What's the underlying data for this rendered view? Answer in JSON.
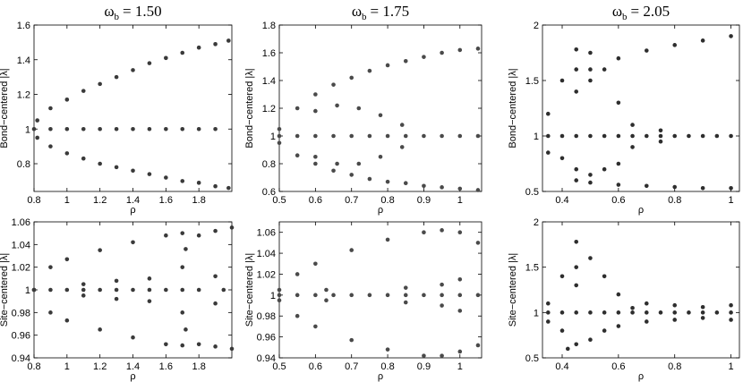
{
  "chart_data": [
    {
      "type": "scatter",
      "title": [
        "ω",
        "b",
        "= 1.50"
      ],
      "xlabel": "ρ",
      "ylabel": "Bond−centered |λ|",
      "xlim": [
        0.8,
        2.0
      ],
      "ylim": [
        0.64,
        1.6
      ],
      "xticks": [
        0.8,
        1,
        1.2,
        1.4,
        1.6,
        1.8
      ],
      "yticks": [
        0.8,
        1,
        1.2,
        1.4,
        1.6
      ],
      "series": [
        {
          "color": "#3a3a3a",
          "x": [
            0.82,
            0.9,
            1,
            1.1,
            1.2,
            1.3,
            1.4,
            1.5,
            1.6,
            1.7,
            1.8,
            1.9,
            1.98,
            0.82,
            0.9,
            1,
            1.1,
            1.2,
            1.3,
            1.4,
            1.5,
            1.6,
            1.7,
            1.8,
            1.9,
            1.98,
            0.8,
            0.9,
            1,
            1.1,
            1.2,
            1.3,
            1.4,
            1.5,
            1.6,
            1.7,
            1.8,
            1.9
          ],
          "y": [
            1.05,
            1.12,
            1.17,
            1.22,
            1.26,
            1.3,
            1.34,
            1.38,
            1.41,
            1.44,
            1.47,
            1.49,
            1.51,
            0.95,
            0.9,
            0.86,
            0.83,
            0.8,
            0.78,
            0.76,
            0.74,
            0.72,
            0.7,
            0.69,
            0.67,
            0.66,
            1,
            1,
            1,
            1,
            1,
            1,
            1,
            1,
            1,
            1,
            1,
            1
          ]
        }
      ]
    },
    {
      "type": "scatter",
      "title": [
        "ω",
        "b",
        "= 1.75"
      ],
      "xlabel": "ρ",
      "ylabel": "Bond−centered |λ|",
      "xlim": [
        0.5,
        1.06
      ],
      "ylim": [
        0.6,
        1.8
      ],
      "xticks": [
        0.5,
        0.6,
        0.7,
        0.8,
        0.9,
        1
      ],
      "yticks": [
        0.6,
        0.8,
        1,
        1.2,
        1.4,
        1.6,
        1.8
      ],
      "series": [
        {
          "color": "#4a4a4a",
          "x": [
            0.5,
            0.55,
            0.6,
            0.65,
            0.7,
            0.75,
            0.8,
            0.85,
            0.9,
            0.95,
            1.0,
            1.05,
            0.5,
            0.55,
            0.6,
            0.65,
            0.7,
            0.75,
            0.8,
            0.85,
            0.9,
            0.95,
            1.0,
            1.05,
            0.6,
            0.66,
            0.72,
            0.78,
            0.84,
            0.6,
            0.66,
            0.72,
            0.78,
            0.84,
            0.5,
            0.55,
            0.6,
            0.65,
            0.7,
            0.75,
            0.8,
            0.85,
            0.9,
            0.95,
            1.0,
            1.05
          ],
          "y": [
            1.05,
            1.2,
            1.3,
            1.37,
            1.42,
            1.47,
            1.51,
            1.54,
            1.57,
            1.6,
            1.62,
            1.63,
            0.95,
            0.86,
            0.8,
            0.75,
            0.72,
            0.69,
            0.67,
            0.66,
            0.64,
            0.63,
            0.62,
            0.61,
            1.18,
            1.22,
            1.2,
            1.15,
            1.08,
            0.85,
            0.8,
            0.8,
            0.85,
            0.92,
            1,
            1,
            1,
            1,
            1,
            1,
            1,
            1,
            1,
            1,
            1,
            1
          ]
        }
      ]
    },
    {
      "type": "scatter",
      "title": [
        "ω",
        "b",
        "= 2.05"
      ],
      "xlabel": "ρ",
      "ylabel": "Bond−centered |λ|",
      "xlim": [
        0.33,
        1.03
      ],
      "ylim": [
        0.5,
        2
      ],
      "xticks": [
        0.4,
        0.6,
        0.8,
        1
      ],
      "yticks": [
        0.5,
        1,
        1.5,
        2
      ],
      "series": [
        {
          "color": "#2e2e2e",
          "x": [
            0.5,
            0.6,
            0.7,
            0.8,
            0.9,
            1.0,
            0.5,
            0.6,
            0.7,
            0.8,
            0.9,
            1.0,
            0.45,
            0.45,
            0.45,
            0.45,
            0.45,
            0.5,
            0.5,
            0.5,
            0.55,
            0.55,
            0.4,
            0.4,
            0.6,
            0.6,
            0.35,
            0.35,
            0.65,
            0.65,
            0.75,
            0.75,
            0.35,
            0.4,
            0.45,
            0.5,
            0.55,
            0.6,
            0.65,
            0.7,
            0.75,
            0.8,
            0.85,
            0.9,
            0.95,
            1.0
          ],
          "y": [
            1.6,
            1.7,
            1.77,
            1.82,
            1.86,
            1.9,
            0.58,
            0.56,
            0.55,
            0.54,
            0.53,
            0.53,
            1.78,
            1.6,
            1.4,
            0.7,
            0.6,
            1.75,
            1.5,
            0.65,
            1.6,
            0.7,
            1.5,
            0.8,
            1.3,
            0.75,
            1.2,
            0.85,
            1.1,
            0.9,
            1.05,
            0.95,
            1,
            1,
            1,
            1,
            1,
            1,
            1,
            1,
            1,
            1,
            1,
            1,
            1,
            1
          ]
        }
      ]
    },
    {
      "type": "scatter",
      "xlabel": "ρ",
      "ylabel": "Site−centered |λ|",
      "xlim": [
        0.8,
        2.0
      ],
      "ylim": [
        0.94,
        1.06
      ],
      "xticks": [
        0.8,
        1,
        1.2,
        1.4,
        1.6,
        1.8
      ],
      "yticks": [
        0.94,
        0.96,
        0.98,
        1,
        1.02,
        1.04,
        1.06
      ],
      "series": [
        {
          "color": "#3a3a3a",
          "x": [
            0.8,
            0.9,
            1.0,
            1.2,
            1.4,
            1.6,
            1.7,
            1.72,
            1.8,
            1.9,
            2.0,
            0.9,
            1.0,
            1.2,
            1.4,
            1.6,
            1.7,
            1.72,
            1.8,
            1.9,
            2.0,
            1.1,
            1.1,
            1.3,
            1.3,
            1.5,
            1.5,
            1.7,
            1.7,
            1.9,
            1.9,
            0.8,
            0.9,
            1.0,
            1.1,
            1.2,
            1.3,
            1.4,
            1.5,
            1.6,
            1.7,
            1.8,
            1.95
          ],
          "y": [
            1,
            1.02,
            1.027,
            1.035,
            1.042,
            1.048,
            1.05,
            1.036,
            1.048,
            1.052,
            1.055,
            0.98,
            0.973,
            0.965,
            0.958,
            0.952,
            0.951,
            0.965,
            0.952,
            0.95,
            0.948,
            1.005,
            0.995,
            1.008,
            0.992,
            1.01,
            0.99,
            1.02,
            0.98,
            1.012,
            0.988,
            1,
            1,
            1,
            1,
            1,
            1,
            1,
            1,
            1,
            1,
            1,
            1
          ]
        }
      ]
    },
    {
      "type": "scatter",
      "xlabel": "ρ",
      "ylabel": "Site−centered |λ|",
      "xlim": [
        0.5,
        1.06
      ],
      "ylim": [
        0.94,
        1.07
      ],
      "xticks": [
        0.5,
        0.6,
        0.7,
        0.8,
        0.9,
        1
      ],
      "yticks": [
        0.94,
        0.96,
        0.98,
        1,
        1.02,
        1.04,
        1.06
      ],
      "series": [
        {
          "color": "#4a4a4a",
          "x": [
            0.5,
            0.55,
            0.6,
            0.7,
            0.8,
            0.9,
            0.95,
            1.0,
            1.05,
            0.5,
            0.55,
            0.6,
            0.7,
            0.8,
            0.9,
            0.95,
            1.0,
            1.05,
            0.63,
            0.63,
            0.85,
            0.85,
            1.0,
            1.0,
            0.95,
            0.95,
            0.5,
            0.55,
            0.6,
            0.65,
            0.7,
            0.75,
            0.8,
            0.85,
            0.9,
            0.95,
            1.0,
            1.05
          ],
          "y": [
            1.005,
            1.02,
            1.03,
            1.043,
            1.053,
            1.06,
            1.062,
            1.06,
            1.05,
            0.995,
            0.98,
            0.97,
            0.957,
            0.948,
            0.942,
            0.942,
            0.946,
            0.952,
            1.005,
            0.995,
            1.007,
            0.993,
            1.015,
            0.985,
            1.01,
            0.99,
            1,
            1,
            1,
            1,
            1,
            1,
            1,
            1,
            1,
            1,
            1,
            1
          ]
        }
      ]
    },
    {
      "type": "scatter",
      "xlabel": "ρ",
      "ylabel": "Site−centered |λ|",
      "xlim": [
        0.33,
        1.03
      ],
      "ylim": [
        0.5,
        2
      ],
      "xticks": [
        0.4,
        0.6,
        0.8,
        1
      ],
      "yticks": [
        0.5,
        1,
        1.5,
        2
      ],
      "series": [
        {
          "color": "#2e2e2e",
          "x": [
            0.65,
            0.7,
            0.8,
            0.9,
            1.0,
            0.7,
            0.8,
            0.9,
            1.0,
            0.45,
            0.45,
            0.45,
            0.45,
            0.5,
            0.5,
            0.55,
            0.55,
            0.4,
            0.4,
            0.6,
            0.6,
            0.35,
            0.35,
            0.42,
            0.35,
            0.4,
            0.45,
            0.5,
            0.55,
            0.6,
            0.65,
            0.7,
            0.75,
            0.8,
            0.85,
            0.9,
            0.95,
            1.0
          ],
          "y": [
            1.05,
            1.1,
            1.08,
            1.06,
            1.08,
            0.9,
            0.92,
            0.94,
            0.92,
            1.78,
            1.5,
            1.3,
            0.65,
            1.6,
            0.7,
            1.4,
            0.8,
            1.4,
            0.8,
            1.2,
            0.85,
            1.1,
            0.9,
            0.6,
            1,
            1,
            1,
            1,
            1,
            1,
            1,
            1,
            1,
            1,
            1,
            1,
            1,
            1
          ]
        }
      ]
    }
  ]
}
